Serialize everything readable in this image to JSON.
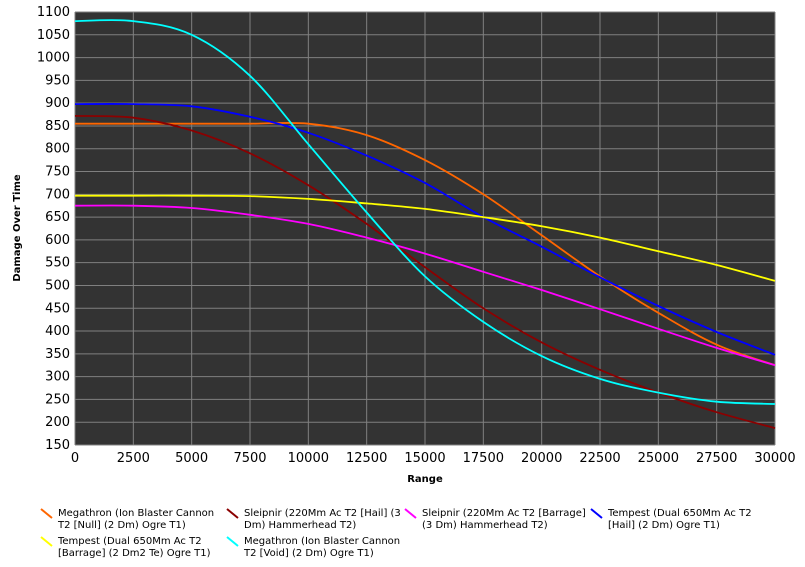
{
  "chart_data": {
    "type": "line",
    "title": "",
    "xlabel": "Range",
    "ylabel": "Damage Over Time",
    "xlim": [
      0,
      30000
    ],
    "ylim": [
      150,
      1100
    ],
    "x_ticks": [
      0,
      2500,
      5000,
      7500,
      10000,
      12500,
      15000,
      17500,
      20000,
      22500,
      25000,
      27500,
      30000
    ],
    "y_ticks": [
      150,
      200,
      250,
      300,
      350,
      400,
      450,
      500,
      550,
      600,
      650,
      700,
      750,
      800,
      850,
      900,
      950,
      1000,
      1050,
      1100
    ],
    "grid": true,
    "legend_position": "bottom",
    "series": [
      {
        "name": "Megathron (Ion Blaster Cannon T2 [Null] (2 Dm) Ogre T1)",
        "color": "#ff6600",
        "points": [
          [
            0,
            855
          ],
          [
            2500,
            855
          ],
          [
            5000,
            855
          ],
          [
            7500,
            855
          ],
          [
            10000,
            855
          ],
          [
            12500,
            830
          ],
          [
            15000,
            775
          ],
          [
            17500,
            700
          ],
          [
            20000,
            610
          ],
          [
            22500,
            520
          ],
          [
            25000,
            440
          ],
          [
            27500,
            370
          ],
          [
            30000,
            325
          ]
        ]
      },
      {
        "name": "Sleipnir (220Mm Ac T2 [Hail] (3 Dm) Hammerhead T2)",
        "color": "#8b0000",
        "points": [
          [
            0,
            872
          ],
          [
            2500,
            868
          ],
          [
            5000,
            840
          ],
          [
            7500,
            790
          ],
          [
            10000,
            720
          ],
          [
            12500,
            635
          ],
          [
            15000,
            540
          ],
          [
            17500,
            450
          ],
          [
            20000,
            375
          ],
          [
            22500,
            315
          ],
          [
            25000,
            265
          ],
          [
            27500,
            222
          ],
          [
            30000,
            187
          ]
        ]
      },
      {
        "name": "Sleipnir (220Mm Ac T2 [Barrage] (3 Dm) Hammerhead T2)",
        "color": "#ff00ff",
        "points": [
          [
            0,
            675
          ],
          [
            2500,
            675
          ],
          [
            5000,
            670
          ],
          [
            7500,
            655
          ],
          [
            10000,
            635
          ],
          [
            12500,
            605
          ],
          [
            15000,
            570
          ],
          [
            17500,
            530
          ],
          [
            20000,
            490
          ],
          [
            22500,
            448
          ],
          [
            25000,
            405
          ],
          [
            27500,
            363
          ],
          [
            30000,
            325
          ]
        ]
      },
      {
        "name": "Tempest (Dual 650Mm Ac T2 [Hail] (2 Dm) Ogre T1)",
        "color": "#0000ff",
        "points": [
          [
            0,
            898
          ],
          [
            2500,
            898
          ],
          [
            5000,
            893
          ],
          [
            7500,
            870
          ],
          [
            10000,
            835
          ],
          [
            12500,
            785
          ],
          [
            15000,
            725
          ],
          [
            17500,
            650
          ],
          [
            20000,
            585
          ],
          [
            22500,
            518
          ],
          [
            25000,
            455
          ],
          [
            27500,
            398
          ],
          [
            30000,
            348
          ]
        ]
      },
      {
        "name": "Tempest (Dual 650Mm Ac T2 [Barrage] (2 Dm2 Te) Ogre T1)",
        "color": "#ffff00",
        "points": [
          [
            0,
            697
          ],
          [
            2500,
            697
          ],
          [
            5000,
            697
          ],
          [
            7500,
            696
          ],
          [
            10000,
            690
          ],
          [
            12500,
            680
          ],
          [
            15000,
            668
          ],
          [
            17500,
            650
          ],
          [
            20000,
            630
          ],
          [
            22500,
            605
          ],
          [
            25000,
            575
          ],
          [
            27500,
            545
          ],
          [
            30000,
            510
          ]
        ]
      },
      {
        "name": "Megathron (Ion Blaster Cannon T2 [Void] (2 Dm) Ogre T1)",
        "color": "#00ffff",
        "points": [
          [
            0,
            1080
          ],
          [
            2500,
            1080
          ],
          [
            5000,
            1050
          ],
          [
            7500,
            960
          ],
          [
            10000,
            810
          ],
          [
            12500,
            660
          ],
          [
            15000,
            520
          ],
          [
            17500,
            420
          ],
          [
            20000,
            345
          ],
          [
            22500,
            295
          ],
          [
            25000,
            265
          ],
          [
            27500,
            245
          ],
          [
            30000,
            240
          ]
        ]
      }
    ]
  }
}
